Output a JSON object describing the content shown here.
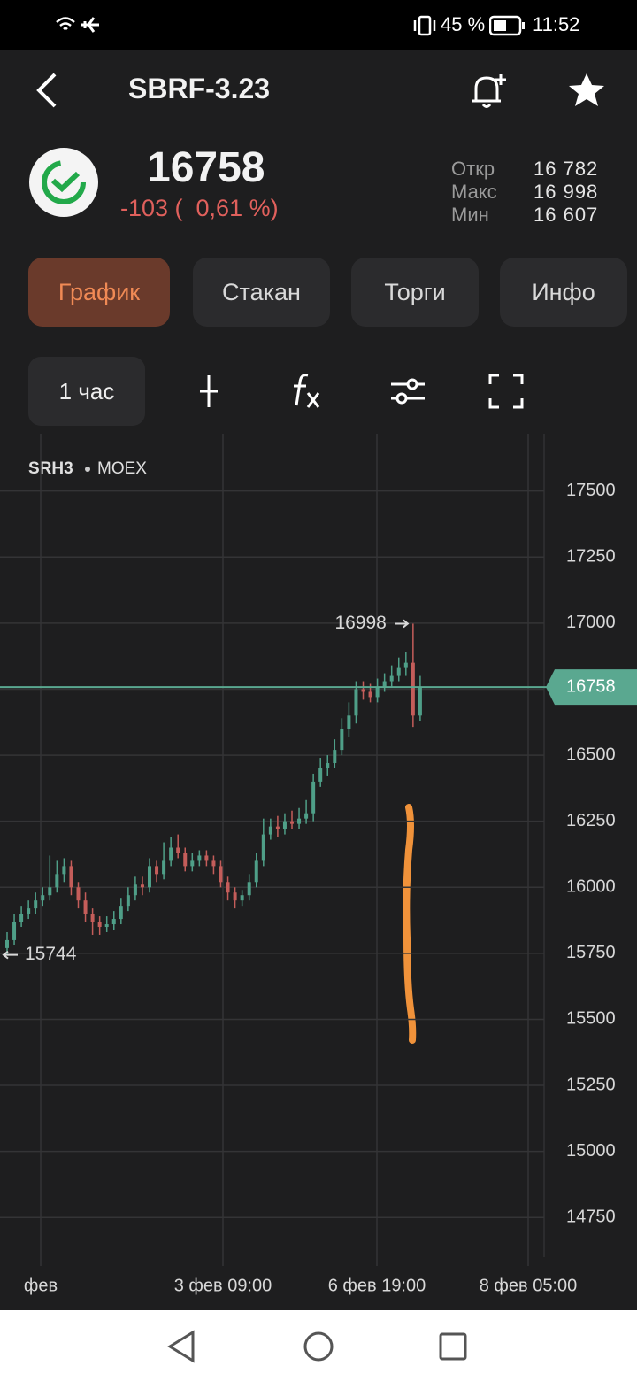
{
  "status_bar": {
    "battery": "45 %",
    "time": "11:52"
  },
  "header": {
    "title": "SBRF-3.23"
  },
  "quote": {
    "price": "16758",
    "change": "-103 (  0,61 %)",
    "stats": [
      {
        "label": "Откр",
        "value": "16 782"
      },
      {
        "label": "Макс",
        "value": "16 998"
      },
      {
        "label": "Мин",
        "value": "16 607"
      }
    ]
  },
  "tabs": [
    "График",
    "Стакан",
    "Торги",
    "Инфо"
  ],
  "toolbar": {
    "interval": "1 час"
  },
  "chart_data": {
    "type": "candlestick",
    "ticker": "SRH3",
    "exchange": "MOEX",
    "up_color": "#4f9f88",
    "down_color": "#c45d5a",
    "open": [
      15770,
      15800,
      15870,
      15900,
      15920,
      15950,
      15970,
      16000,
      16050,
      16080,
      16000,
      15950,
      15900,
      15870,
      15850,
      15860,
      15880,
      15930,
      15970,
      16010,
      16000,
      16080,
      16050,
      16100,
      16150,
      16130,
      16080,
      16100,
      16120,
      16100,
      16080,
      16020,
      15980,
      15950,
      15970,
      16020,
      16100,
      16200,
      16230,
      16220,
      16250,
      16240,
      16260,
      16280,
      16400,
      16450,
      16470,
      16520,
      16600,
      16650,
      16750,
      16740,
      16720,
      16760,
      16780,
      16800,
      16830,
      16850,
      16650
    ],
    "high": [
      15830,
      15900,
      15930,
      15950,
      15980,
      16000,
      16120,
      16100,
      16110,
      16100,
      16020,
      15980,
      15920,
      15890,
      15890,
      15910,
      15960,
      16000,
      16040,
      16040,
      16110,
      16100,
      16170,
      16190,
      16200,
      16150,
      16130,
      16140,
      16140,
      16120,
      16100,
      16040,
      16000,
      15990,
      16050,
      16130,
      16260,
      16260,
      16270,
      16280,
      16290,
      16300,
      16330,
      16430,
      16490,
      16500,
      16560,
      16640,
      16700,
      16780,
      16780,
      16770,
      16790,
      16810,
      16840,
      16870,
      16890,
      16998,
      16800
    ],
    "low": [
      15744,
      15780,
      15850,
      15880,
      15900,
      15930,
      15950,
      15980,
      16020,
      15970,
      15920,
      15870,
      15820,
      15820,
      15830,
      15840,
      15860,
      15910,
      15950,
      15970,
      15980,
      16020,
      16030,
      16080,
      16110,
      16060,
      16060,
      16080,
      16080,
      16050,
      16000,
      15950,
      15920,
      15930,
      15950,
      16000,
      16080,
      16180,
      16190,
      16200,
      16220,
      16220,
      16240,
      16250,
      16380,
      16420,
      16450,
      16500,
      16570,
      16620,
      16710,
      16700,
      16700,
      16740,
      16760,
      16780,
      16800,
      16607,
      16630
    ],
    "close": [
      15800,
      15870,
      15900,
      15920,
      15950,
      15970,
      16000,
      16050,
      16080,
      16000,
      15950,
      15900,
      15870,
      15850,
      15860,
      15880,
      15930,
      15970,
      16010,
      16000,
      16080,
      16050,
      16100,
      16150,
      16130,
      16080,
      16100,
      16120,
      16100,
      16080,
      16020,
      15980,
      15950,
      15970,
      16020,
      16100,
      16200,
      16230,
      16220,
      16250,
      16240,
      16260,
      16280,
      16400,
      16450,
      16470,
      16520,
      16600,
      16650,
      16750,
      16740,
      16720,
      16760,
      16780,
      16800,
      16830,
      16850,
      16650,
      16758
    ],
    "ylim": [
      14600,
      17700
    ],
    "yticks": [
      17500,
      17250,
      17000,
      16750,
      16500,
      16250,
      16000,
      15750,
      15500,
      15250,
      15000,
      14750
    ],
    "x_labels": [
      "фев",
      "3 фев 09:00",
      "6 фев 19:00",
      "8 фев 05:00"
    ]
  }
}
